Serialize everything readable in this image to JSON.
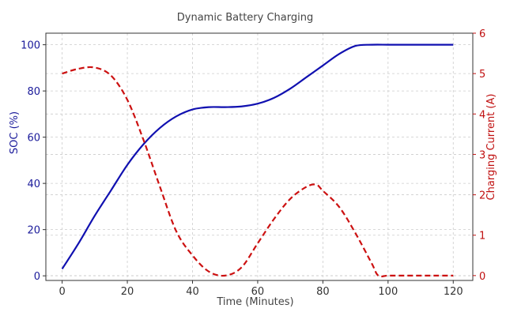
{
  "chart_data": {
    "type": "line",
    "title": "Dynamic Battery Charging",
    "xlabel": "Time (Minutes)",
    "ylabel_left": "SOC   (%)",
    "ylabel_right": "Charging Current (A)",
    "xlim": [
      -5,
      126
    ],
    "ylim_left": [
      -2,
      105
    ],
    "ylim_right": [
      -0.12,
      6.0
    ],
    "x_ticks": [
      0,
      20,
      40,
      60,
      80,
      100,
      120
    ],
    "y_left_ticks": [
      0,
      20,
      40,
      60,
      80,
      100
    ],
    "y_right_ticks": [
      0,
      1,
      2,
      3,
      4,
      5,
      6
    ],
    "grid": true,
    "colors": {
      "soc": "#1010b0",
      "current": "#cc1111",
      "left_axis_text": "#1a1a9a",
      "right_axis_text": "#c01010",
      "grid": "#cccccc"
    },
    "series": [
      {
        "axis": "left",
        "style": "solid",
        "x": [
          0,
          5,
          10,
          15,
          20,
          25,
          30,
          35,
          40,
          45,
          50,
          55,
          60,
          65,
          70,
          75,
          80,
          85,
          90,
          95,
          100,
          105,
          110,
          115,
          120
        ],
        "values": [
          3,
          14,
          26,
          37,
          48,
          57,
          64,
          69,
          72,
          73,
          73,
          73.3,
          74.5,
          77,
          81,
          86,
          91,
          96,
          99.5,
          100,
          100,
          100,
          100,
          100,
          100
        ]
      },
      {
        "axis": "right",
        "style": "dashed",
        "x": [
          0,
          5,
          10,
          15,
          20,
          25,
          30,
          35,
          40,
          45,
          50,
          55,
          60,
          65,
          70,
          75,
          78,
          80,
          85,
          90,
          95,
          97,
          100,
          105,
          110,
          115,
          120
        ],
        "values": [
          5.0,
          5.12,
          5.15,
          4.95,
          4.35,
          3.35,
          2.2,
          1.1,
          0.5,
          0.1,
          0.0,
          0.2,
          0.8,
          1.4,
          1.9,
          2.2,
          2.25,
          2.1,
          1.7,
          1.05,
          0.3,
          0.0,
          0.0,
          0.0,
          0.0,
          0.0,
          0.0
        ]
      }
    ]
  }
}
